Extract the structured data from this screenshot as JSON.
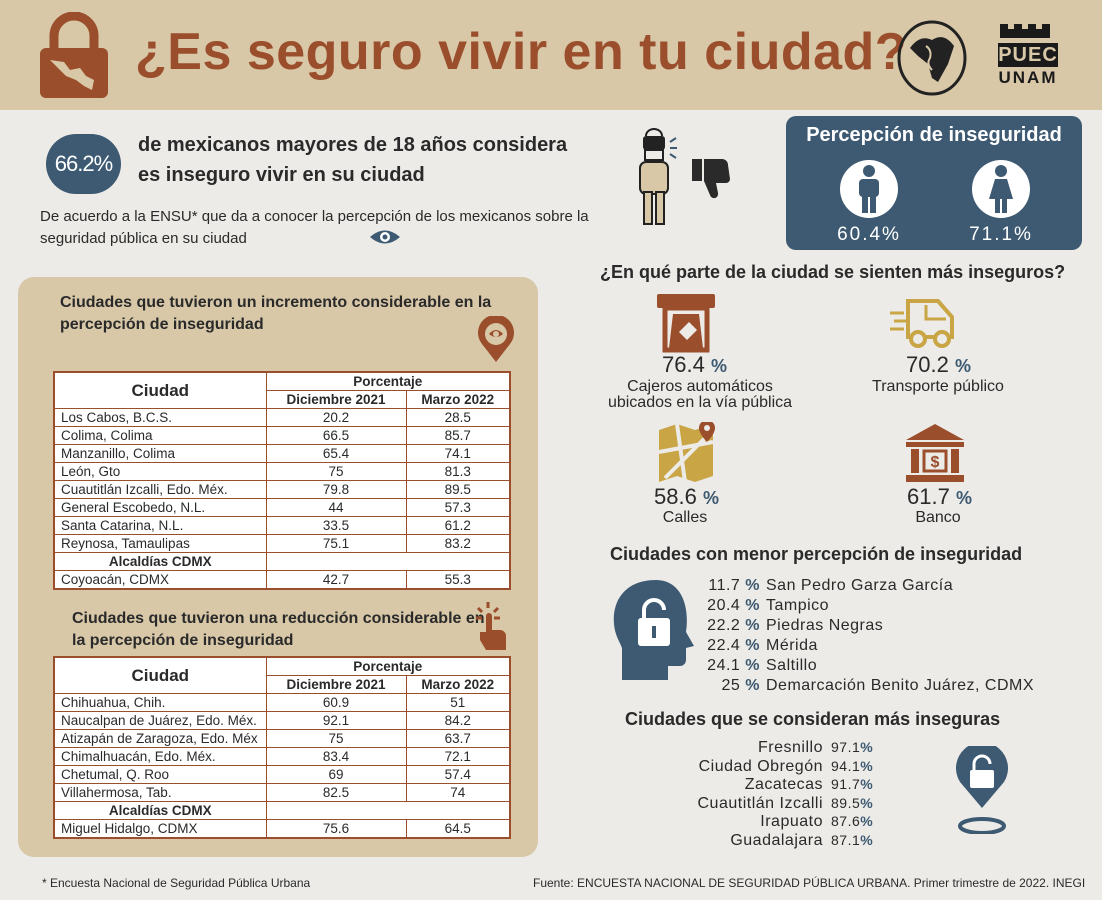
{
  "header": {
    "title": "¿Es seguro vivir en tu ciudad?",
    "logo_text_line1": "PUEC",
    "logo_text_line2": "UNAM"
  },
  "intro": {
    "percent": "66.2%",
    "headline_line1": "de mexicanos mayores de 18 años considera",
    "headline_line2": "es inseguro vivir en su ciudad",
    "description": "De acuerdo a la ENSU* que da a conocer la percepción de los mexicanos sobre la seguridad pública en su ciudad"
  },
  "perception": {
    "title": "Percepción de inseguridad",
    "men_value": "60.4%",
    "women_value": "71.1%"
  },
  "increase_section": {
    "heading": "Ciudades que tuvieron un incremento considerable en la percepción de inseguridad",
    "table": {
      "header_city": "Ciudad",
      "header_group": "Porcentaje",
      "header_dec": "Diciembre 2021",
      "header_mar": "Marzo 2022",
      "rows": [
        {
          "city": "Los Cabos, B.C.S.",
          "dec": "20.2",
          "mar": "28.5"
        },
        {
          "city": "Colima, Colima",
          "dec": "66.5",
          "mar": "85.7"
        },
        {
          "city": "Manzanillo, Colima",
          "dec": "65.4",
          "mar": "74.1"
        },
        {
          "city": "León, Gto",
          "dec": "75",
          "mar": "81.3"
        },
        {
          "city": "Cuautitlán Izcalli, Edo. Méx.",
          "dec": "79.8",
          "mar": "89.5"
        },
        {
          "city": "General Escobedo, N.L.",
          "dec": "44",
          "mar": "57.3"
        },
        {
          "city": "Santa Catarina, N.L.",
          "dec": "33.5",
          "mar": "61.2"
        },
        {
          "city": "Reynosa, Tamaulipas",
          "dec": "75.1",
          "mar": "83.2"
        }
      ],
      "subheader": "Alcaldías CDMX",
      "cdmx_row": {
        "city": "Coyoacán, CDMX",
        "dec": "42.7",
        "mar": "55.3"
      }
    }
  },
  "decrease_section": {
    "heading": "Ciudades que tuvieron una reducción considerable en la percepción de inseguridad",
    "table": {
      "header_city": "Ciudad",
      "header_group": "Porcentaje",
      "header_dec": "Diciembre 2021",
      "header_mar": "Marzo 2022",
      "rows": [
        {
          "city": "Chihuahua, Chih.",
          "dec": "60.9",
          "mar": "51"
        },
        {
          "city": "Naucalpan de Juárez, Edo. Méx.",
          "dec": "92.1",
          "mar": "84.2"
        },
        {
          "city": "Atizapán de Zaragoza, Edo. Méx",
          "dec": "75",
          "mar": "63.7"
        },
        {
          "city": "Chimalhuacán, Edo. Méx.",
          "dec": "83.4",
          "mar": "72.1"
        },
        {
          "city": "Chetumal, Q. Roo",
          "dec": "69",
          "mar": "57.4"
        },
        {
          "city": "Villahermosa, Tab.",
          "dec": "82.5",
          "mar": "74"
        }
      ],
      "subheader": "Alcaldías CDMX",
      "cdmx_row": {
        "city": "Miguel Hidalgo, CDMX",
        "dec": "75.6",
        "mar": "64.5"
      }
    }
  },
  "places": {
    "heading": "¿En qué parte de la ciudad se sienten más inseguros?",
    "items": [
      {
        "value": "76.4",
        "label": "Cajeros automáticos ubicados en la vía pública"
      },
      {
        "value": "70.2",
        "label": "Transporte público"
      },
      {
        "value": "58.6",
        "label": "Calles"
      },
      {
        "value": "61.7",
        "label": "Banco"
      }
    ],
    "pct_mark": "%"
  },
  "least_perception": {
    "heading": "Ciudades con menor percepción de inseguridad",
    "rows": [
      {
        "value": "11.7",
        "city": "San Pedro Garza García"
      },
      {
        "value": "20.4",
        "city": "Tampico"
      },
      {
        "value": "22.2",
        "city": "Piedras Negras"
      },
      {
        "value": "22.4",
        "city": "Mérida"
      },
      {
        "value": "24.1",
        "city": "Saltillo"
      },
      {
        "value": "25",
        "city": "Demarcación Benito Juárez, CDMX"
      }
    ]
  },
  "most_insecure": {
    "heading": "Ciudades que se consideran más inseguras",
    "rows": [
      {
        "city": "Fresnillo",
        "value": "97.1"
      },
      {
        "city": "Ciudad Obregón",
        "value": "94.1"
      },
      {
        "city": "Zacatecas",
        "value": "91.7"
      },
      {
        "city": "Cuautitlán Izcalli",
        "value": "89.5"
      },
      {
        "city": "Irapuato",
        "value": "87.6"
      },
      {
        "city": "Guadalajara",
        "value": "87.1"
      }
    ]
  },
  "footer": {
    "footnote": "* Encuesta Nacional de Seguridad Pública Urbana",
    "source": "Fuente: ENCUESTA NACIONAL DE SEGURIDAD PÚBLICA URBANA. Primer trimestre de 2022. INEGI"
  },
  "colors": {
    "brand_rust": "#9a4e2c",
    "navy": "#3d5a72",
    "tan": "#d8c8a8"
  }
}
